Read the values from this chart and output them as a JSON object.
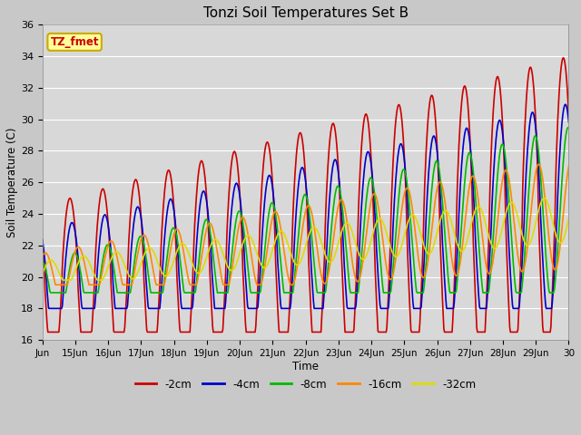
{
  "title": "Tonzi Soil Temperatures Set B",
  "xlabel": "Time",
  "ylabel": "Soil Temperature (C)",
  "ylim": [
    16,
    36
  ],
  "yticks": [
    16,
    18,
    20,
    22,
    24,
    26,
    28,
    30,
    32,
    34,
    36
  ],
  "bg_color": "#e8e8e8",
  "plot_bg_color": "#d8d8d8",
  "grid_color": "#ffffff",
  "annotation_text": "TZ_fmet",
  "annotation_bg": "#ffff99",
  "annotation_border": "#ccaa00",
  "series": [
    {
      "label": "-2cm",
      "color": "#cc0000",
      "linewidth": 1.2
    },
    {
      "label": "-4cm",
      "color": "#0000cc",
      "linewidth": 1.2
    },
    {
      "label": "-8cm",
      "color": "#00bb00",
      "linewidth": 1.2
    },
    {
      "label": "-16cm",
      "color": "#ff8800",
      "linewidth": 1.2
    },
    {
      "label": "-32cm",
      "color": "#dddd00",
      "linewidth": 1.2
    }
  ],
  "xtick_labels": [
    "Jun",
    "15Jun",
    "16Jun",
    "17Jun",
    "18Jun",
    "19Jun",
    "20Jun",
    "21Jun",
    "22Jun",
    "23Jun",
    "24Jun",
    "25Jun",
    "26Jun",
    "27Jun",
    "28Jun",
    "29Jun",
    "30"
  ],
  "fig_width": 6.4,
  "fig_height": 4.8,
  "dpi": 100
}
